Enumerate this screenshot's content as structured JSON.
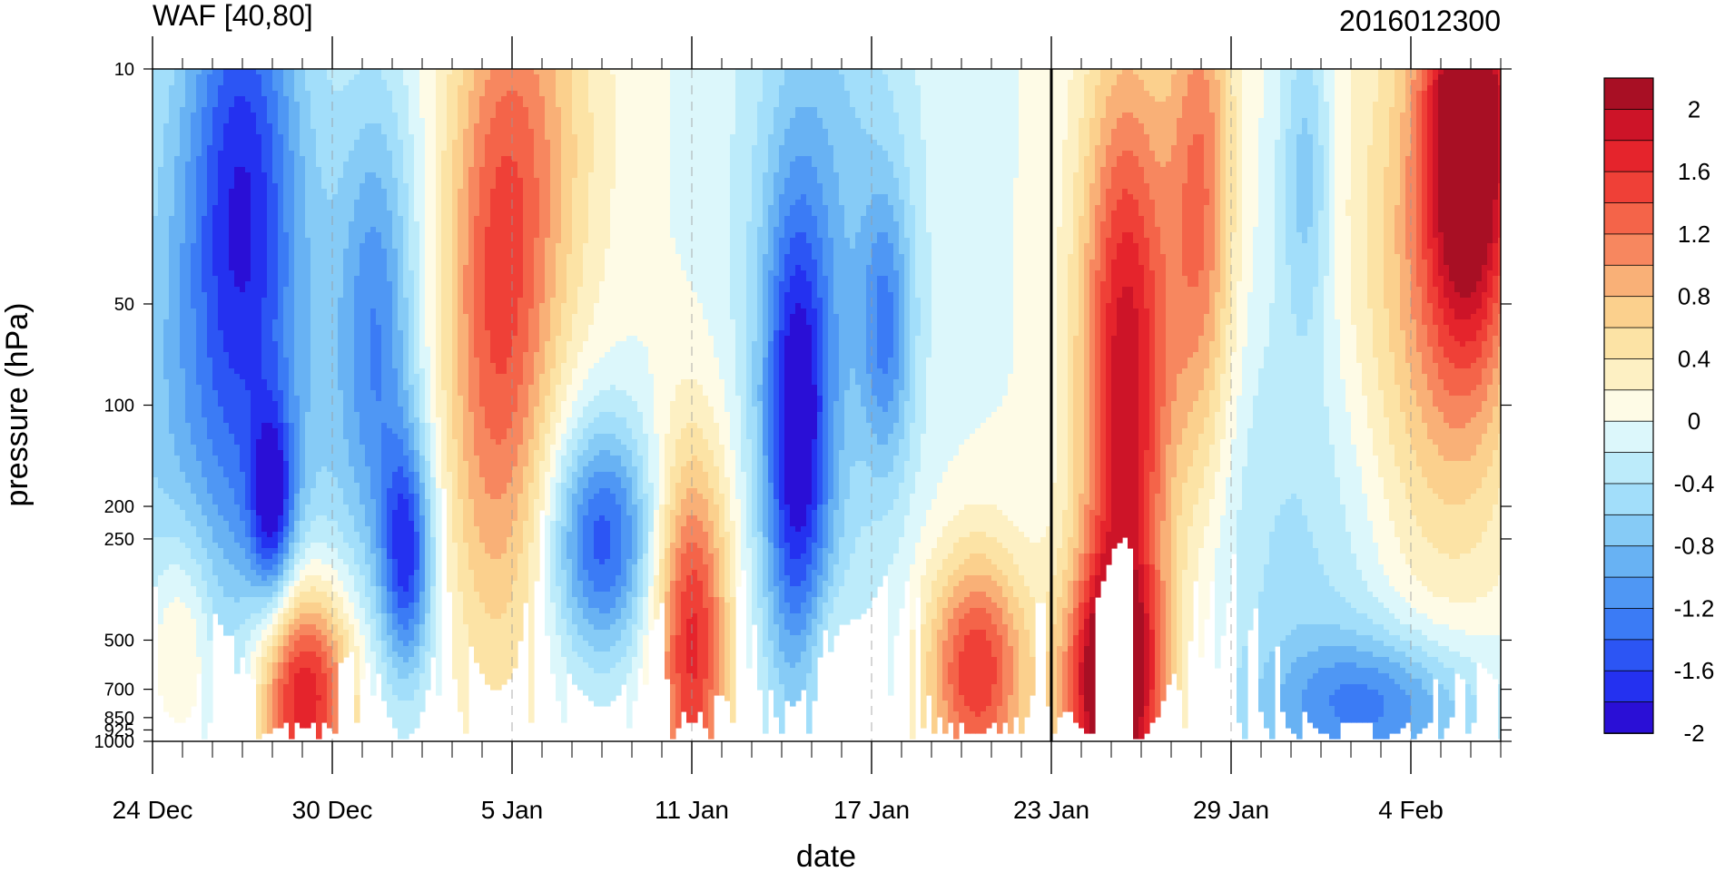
{
  "chart_data": {
    "type": "heatmap",
    "title": "WAF [40,80]",
    "right_title": "2016012300",
    "xlabel": "date",
    "ylabel": "pressure (hPa)",
    "x_ticks": [
      "24 Dec",
      "30 Dec",
      "5 Jan",
      "11 Jan",
      "17 Jan",
      "23 Jan",
      "29 Jan",
      "4 Feb"
    ],
    "x_tick_days": [
      0,
      6,
      12,
      18,
      24,
      30,
      36,
      42
    ],
    "x_range_days": [
      0,
      45
    ],
    "y_ticks": [
      "10",
      "50",
      "100",
      "200",
      "250",
      "500",
      "700",
      "850",
      "925",
      "1000"
    ],
    "y_tick_values": [
      10,
      50,
      100,
      200,
      250,
      500,
      700,
      850,
      925,
      1000
    ],
    "y_range": [
      10,
      1000
    ],
    "y_scale": "log",
    "y_reversed": true,
    "reference_line_day": 30,
    "colorbar": {
      "labels": [
        "2",
        "1.6",
        "1.2",
        "0.8",
        "0.4",
        "0",
        "-0.4",
        "-0.8",
        "-1.2",
        "-1.6",
        "-2"
      ],
      "levels": [
        -2.2,
        -2.0,
        -1.8,
        -1.6,
        -1.4,
        -1.2,
        -1.0,
        -0.8,
        -0.6,
        -0.4,
        -0.2,
        0.0,
        0.2,
        0.4,
        0.6,
        0.8,
        1.0,
        1.2,
        1.4,
        1.6,
        1.8,
        2.0,
        2.2
      ],
      "colors": [
        "#2a0fd6",
        "#2431f0",
        "#2c55f4",
        "#3b7bf5",
        "#4f97f4",
        "#68b2f3",
        "#86cbf6",
        "#a2defa",
        "#bcebfa",
        "#dcf7fb",
        "#fefbe6",
        "#fdf0c3",
        "#fce3a5",
        "#fbd08d",
        "#f9b077",
        "#f7875f",
        "#f46449",
        "#ef4037",
        "#e5242c",
        "#cd1428",
        "#a80f24"
      ]
    },
    "features": [
      {
        "day": 3.0,
        "p": 20,
        "v": -1.2,
        "sd": 1.3,
        "sp": 0.6
      },
      {
        "day": 2.5,
        "p": 120,
        "v": -0.9,
        "sd": 3.0,
        "sp": 0.9
      },
      {
        "day": 7.5,
        "p": 60,
        "v": -1.0,
        "sd": 0.9,
        "sp": 0.5
      },
      {
        "day": 8.5,
        "p": 280,
        "v": -1.5,
        "sd": 0.6,
        "sp": 0.25
      },
      {
        "day": 4.0,
        "p": 200,
        "v": -1.3,
        "sd": 0.5,
        "sp": 0.2
      },
      {
        "day": 5.0,
        "p": 720,
        "v": 2.2,
        "sd": 1.2,
        "sp": 0.25
      },
      {
        "day": 1.0,
        "p": 500,
        "v": 0.8,
        "sd": 0.9,
        "sp": 0.25
      },
      {
        "day": 11.5,
        "p": 60,
        "v": 1.3,
        "sd": 1.3,
        "sp": 0.7
      },
      {
        "day": 13.0,
        "p": 15,
        "v": 0.6,
        "sd": 1.6,
        "sp": 0.5
      },
      {
        "day": 15.0,
        "p": 250,
        "v": -1.5,
        "sd": 1.2,
        "sp": 0.25
      },
      {
        "day": 18.0,
        "p": 500,
        "v": 1.7,
        "sd": 0.9,
        "sp": 0.4
      },
      {
        "day": 21.5,
        "p": 130,
        "v": -1.7,
        "sd": 0.8,
        "sp": 0.5
      },
      {
        "day": 24.5,
        "p": 60,
        "v": -0.9,
        "sd": 0.6,
        "sp": 0.3
      },
      {
        "day": 22.5,
        "p": 30,
        "v": -0.7,
        "sd": 2.0,
        "sp": 0.8
      },
      {
        "day": 27.5,
        "p": 620,
        "v": 1.6,
        "sd": 1.2,
        "sp": 0.25
      },
      {
        "day": 22.5,
        "p": 540,
        "v": 0.3,
        "sd": 0.6,
        "sp": 0.15
      },
      {
        "day": 32.5,
        "p": 90,
        "v": 2.0,
        "sd": 1.1,
        "sp": 0.7
      },
      {
        "day": 32.0,
        "p": 700,
        "v": 2.2,
        "sd": 1.1,
        "sp": 0.25
      },
      {
        "day": 35.0,
        "p": 25,
        "v": 1.2,
        "sd": 0.8,
        "sp": 0.6
      },
      {
        "day": 44.0,
        "p": 14,
        "v": 2.4,
        "sd": 1.1,
        "sp": 0.5
      },
      {
        "day": 42.5,
        "p": 60,
        "v": 0.9,
        "sd": 2.0,
        "sp": 0.7
      },
      {
        "day": 41.0,
        "p": 780,
        "v": -1.1,
        "sd": 2.5,
        "sp": 0.15
      },
      {
        "day": 39.0,
        "p": 300,
        "v": -0.5,
        "sd": 3.0,
        "sp": 0.6
      },
      {
        "day": 38.5,
        "p": 20,
        "v": -0.7,
        "sd": 0.6,
        "sp": 0.35
      }
    ]
  }
}
